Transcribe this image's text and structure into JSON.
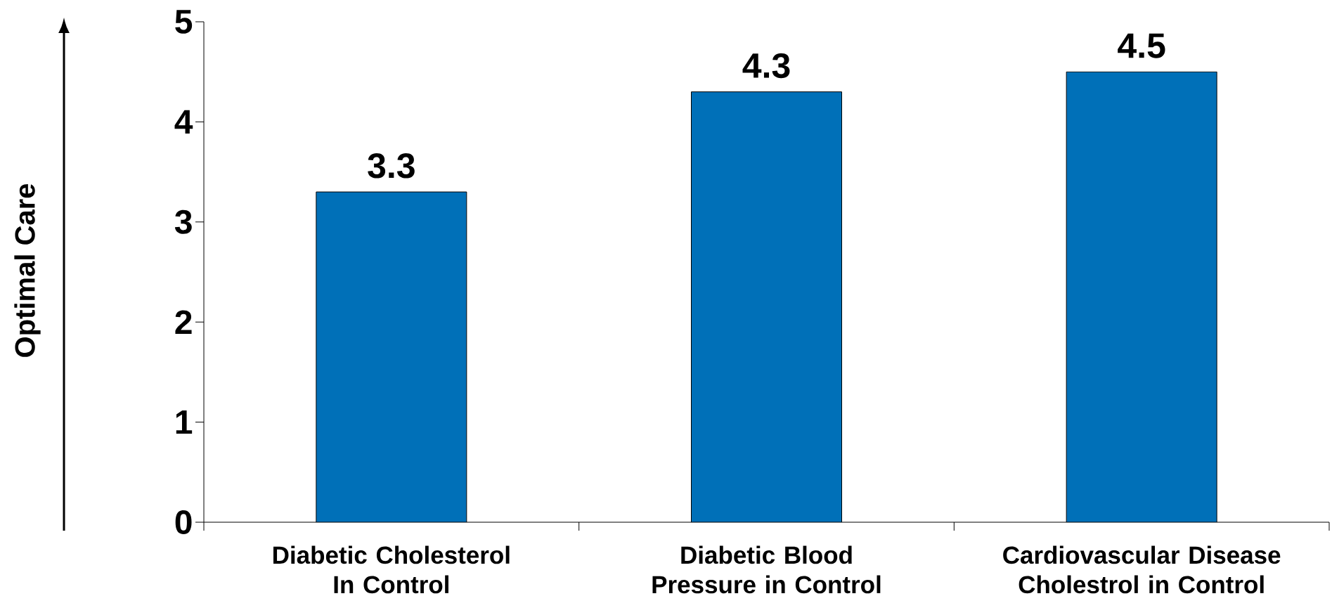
{
  "chart_data": {
    "type": "bar",
    "ylabel": "Optimal Care",
    "categories": [
      "Diabetic Cholesterol In Control",
      "Diabetic Blood Pressure in Control",
      "Cardiovascular Disease Cholestrol in Control"
    ],
    "values": [
      3.3,
      4.3,
      4.5
    ],
    "color": "#0070b8",
    "ylim": [
      0,
      5
    ],
    "yticks": [
      0,
      1,
      2,
      3,
      4,
      5
    ],
    "data_labels": true,
    "grid": false
  }
}
